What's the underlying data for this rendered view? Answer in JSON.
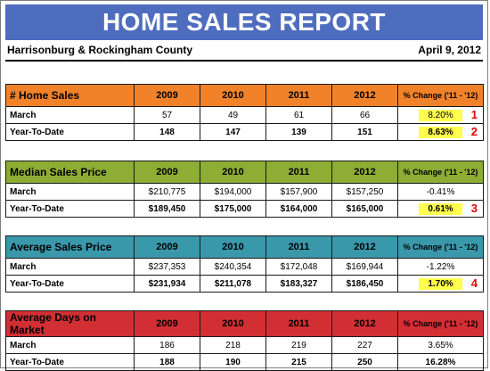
{
  "report": {
    "title": "HOME SALES REPORT",
    "region": "Harrisonburg & Rockingham County",
    "date": "April 9, 2012"
  },
  "columns": {
    "years": [
      "2009",
      "2010",
      "2011",
      "2012"
    ],
    "change": "% Change ('11 - '12)"
  },
  "tables": [
    {
      "label": "# Home Sales",
      "header_color": "#f2822a",
      "rows": [
        {
          "label": "March",
          "values": [
            "57",
            "49",
            "61",
            "66"
          ],
          "change": "8.20%",
          "marker": "1"
        },
        {
          "label": "Year-To-Date",
          "values": [
            "148",
            "147",
            "139",
            "151"
          ],
          "change": "8.63%",
          "marker": "2"
        }
      ]
    },
    {
      "label": "Median Sales Price",
      "header_color": "#8dad35",
      "rows": [
        {
          "label": "March",
          "values": [
            "$210,775",
            "$194,000",
            "$157,900",
            "$157,250"
          ],
          "change": "-0.41%",
          "marker": ""
        },
        {
          "label": "Year-To-Date",
          "values": [
            "$189,450",
            "$175,000",
            "$164,000",
            "$165,000"
          ],
          "change": "0.61%",
          "marker": "3"
        }
      ]
    },
    {
      "label": "Average Sales Price",
      "header_color": "#3a98ab",
      "rows": [
        {
          "label": "March",
          "values": [
            "$237,353",
            "$240,354",
            "$172,048",
            "$169,944"
          ],
          "change": "-1.22%",
          "marker": ""
        },
        {
          "label": "Year-To-Date",
          "values": [
            "$231,934",
            "$211,078",
            "$183,327",
            "$186,450"
          ],
          "change": "1.70%",
          "marker": "4"
        }
      ]
    },
    {
      "label": "Average Days on Market",
      "header_color": "#d22f34",
      "rows": [
        {
          "label": "March",
          "values": [
            "186",
            "218",
            "219",
            "227"
          ],
          "change": "3.65%",
          "marker": ""
        },
        {
          "label": "Year-To-Date",
          "values": [
            "188",
            "190",
            "215",
            "250"
          ],
          "change": "16.28%",
          "marker": ""
        }
      ]
    }
  ],
  "highlight_color": "#ffff4d",
  "marker_color": "#e00000"
}
